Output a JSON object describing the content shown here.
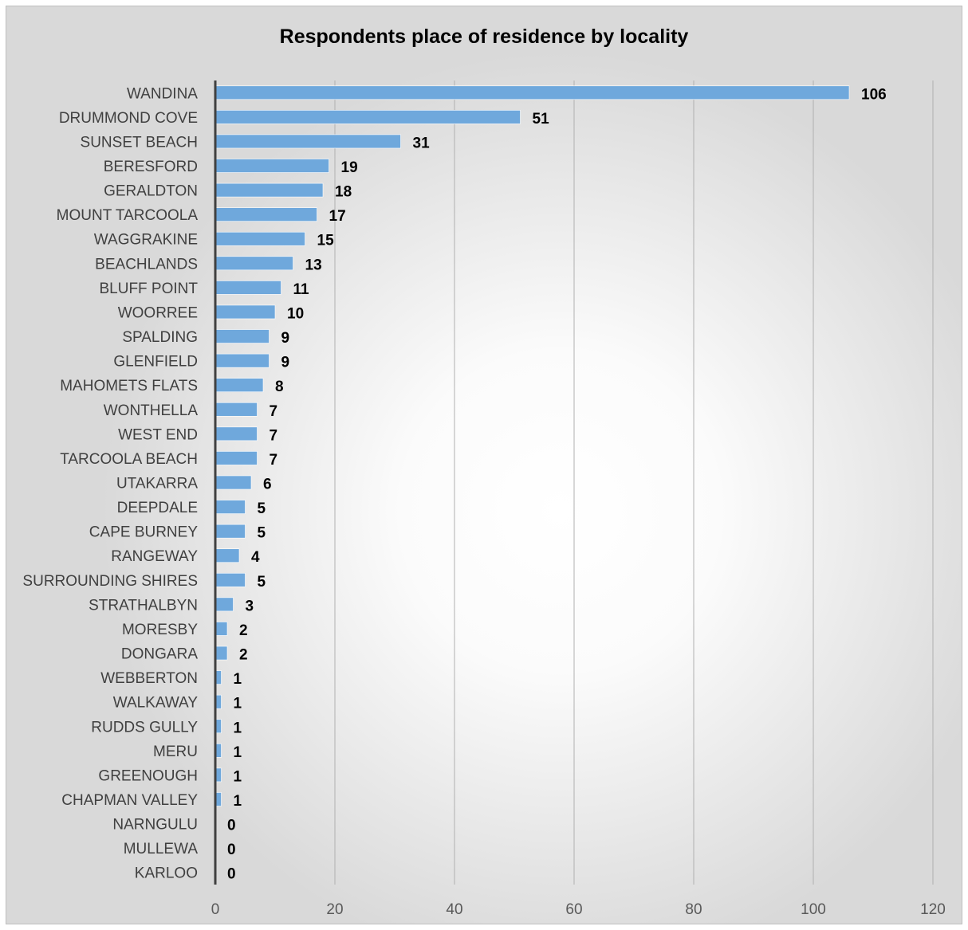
{
  "chart_data": {
    "type": "bar",
    "orientation": "horizontal",
    "title": "Respondents place of residence by locality",
    "xlabel": "",
    "ylabel": "",
    "xlim": [
      0,
      120
    ],
    "x_ticks": [
      0,
      20,
      40,
      60,
      80,
      100,
      120
    ],
    "grid": true,
    "legend": "none",
    "bar_color": "#6fa8dc",
    "categories": [
      "WANDINA",
      "DRUMMOND COVE",
      "SUNSET BEACH",
      "BERESFORD",
      "GERALDTON",
      "MOUNT TARCOOLA",
      "WAGGRAKINE",
      "BEACHLANDS",
      "BLUFF POINT",
      "WOORREE",
      "SPALDING",
      "GLENFIELD",
      "MAHOMETS FLATS",
      "WONTHELLA",
      "WEST END",
      "TARCOOLA BEACH",
      "UTAKARRA",
      "DEEPDALE",
      "CAPE BURNEY",
      "RANGEWAY",
      "SURROUNDING SHIRES",
      "STRATHALBYN",
      "MORESBY",
      "DONGARA",
      "WEBBERTON",
      "WALKAWAY",
      "RUDDS GULLY",
      "MERU",
      "GREENOUGH",
      "CHAPMAN VALLEY",
      "NARNGULU",
      "MULLEWA",
      "KARLOO"
    ],
    "values": [
      106,
      51,
      31,
      19,
      18,
      17,
      15,
      13,
      11,
      10,
      9,
      9,
      8,
      7,
      7,
      7,
      6,
      5,
      5,
      4,
      5,
      3,
      2,
      2,
      1,
      1,
      1,
      1,
      1,
      1,
      0,
      0,
      0
    ]
  }
}
